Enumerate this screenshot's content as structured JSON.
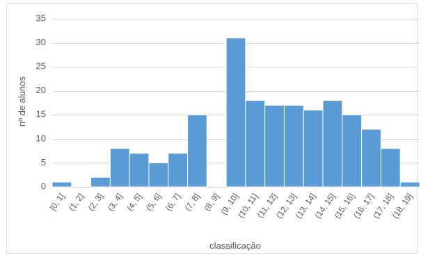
{
  "chart_data": {
    "type": "bar",
    "title": "",
    "xlabel": "classificação",
    "ylabel": "nº de alunos",
    "ylim": [
      0,
      35
    ],
    "yticks": [
      0,
      5,
      10,
      15,
      20,
      25,
      30,
      35
    ],
    "grid": true,
    "bar_color": "#5b9bd5",
    "categories": [
      "[0, 1]",
      "(1, 2]",
      "(2, 3]",
      "(3, 4]",
      "(4, 5]",
      "(5, 6]",
      "(6, 7]",
      "(7, 8]",
      "(8, 9]",
      "(9, 10]",
      "(10, 11]",
      "(11, 12]",
      "(12, 13]",
      "(13, 14]",
      "(14, 15]",
      "(15, 16]",
      "(16, 17]",
      "(17, 18]",
      "(18, 19]"
    ],
    "values": [
      1,
      0,
      2,
      8,
      7,
      5,
      7,
      15,
      0,
      31,
      18,
      17,
      17,
      16,
      18,
      15,
      12,
      8,
      1
    ]
  }
}
